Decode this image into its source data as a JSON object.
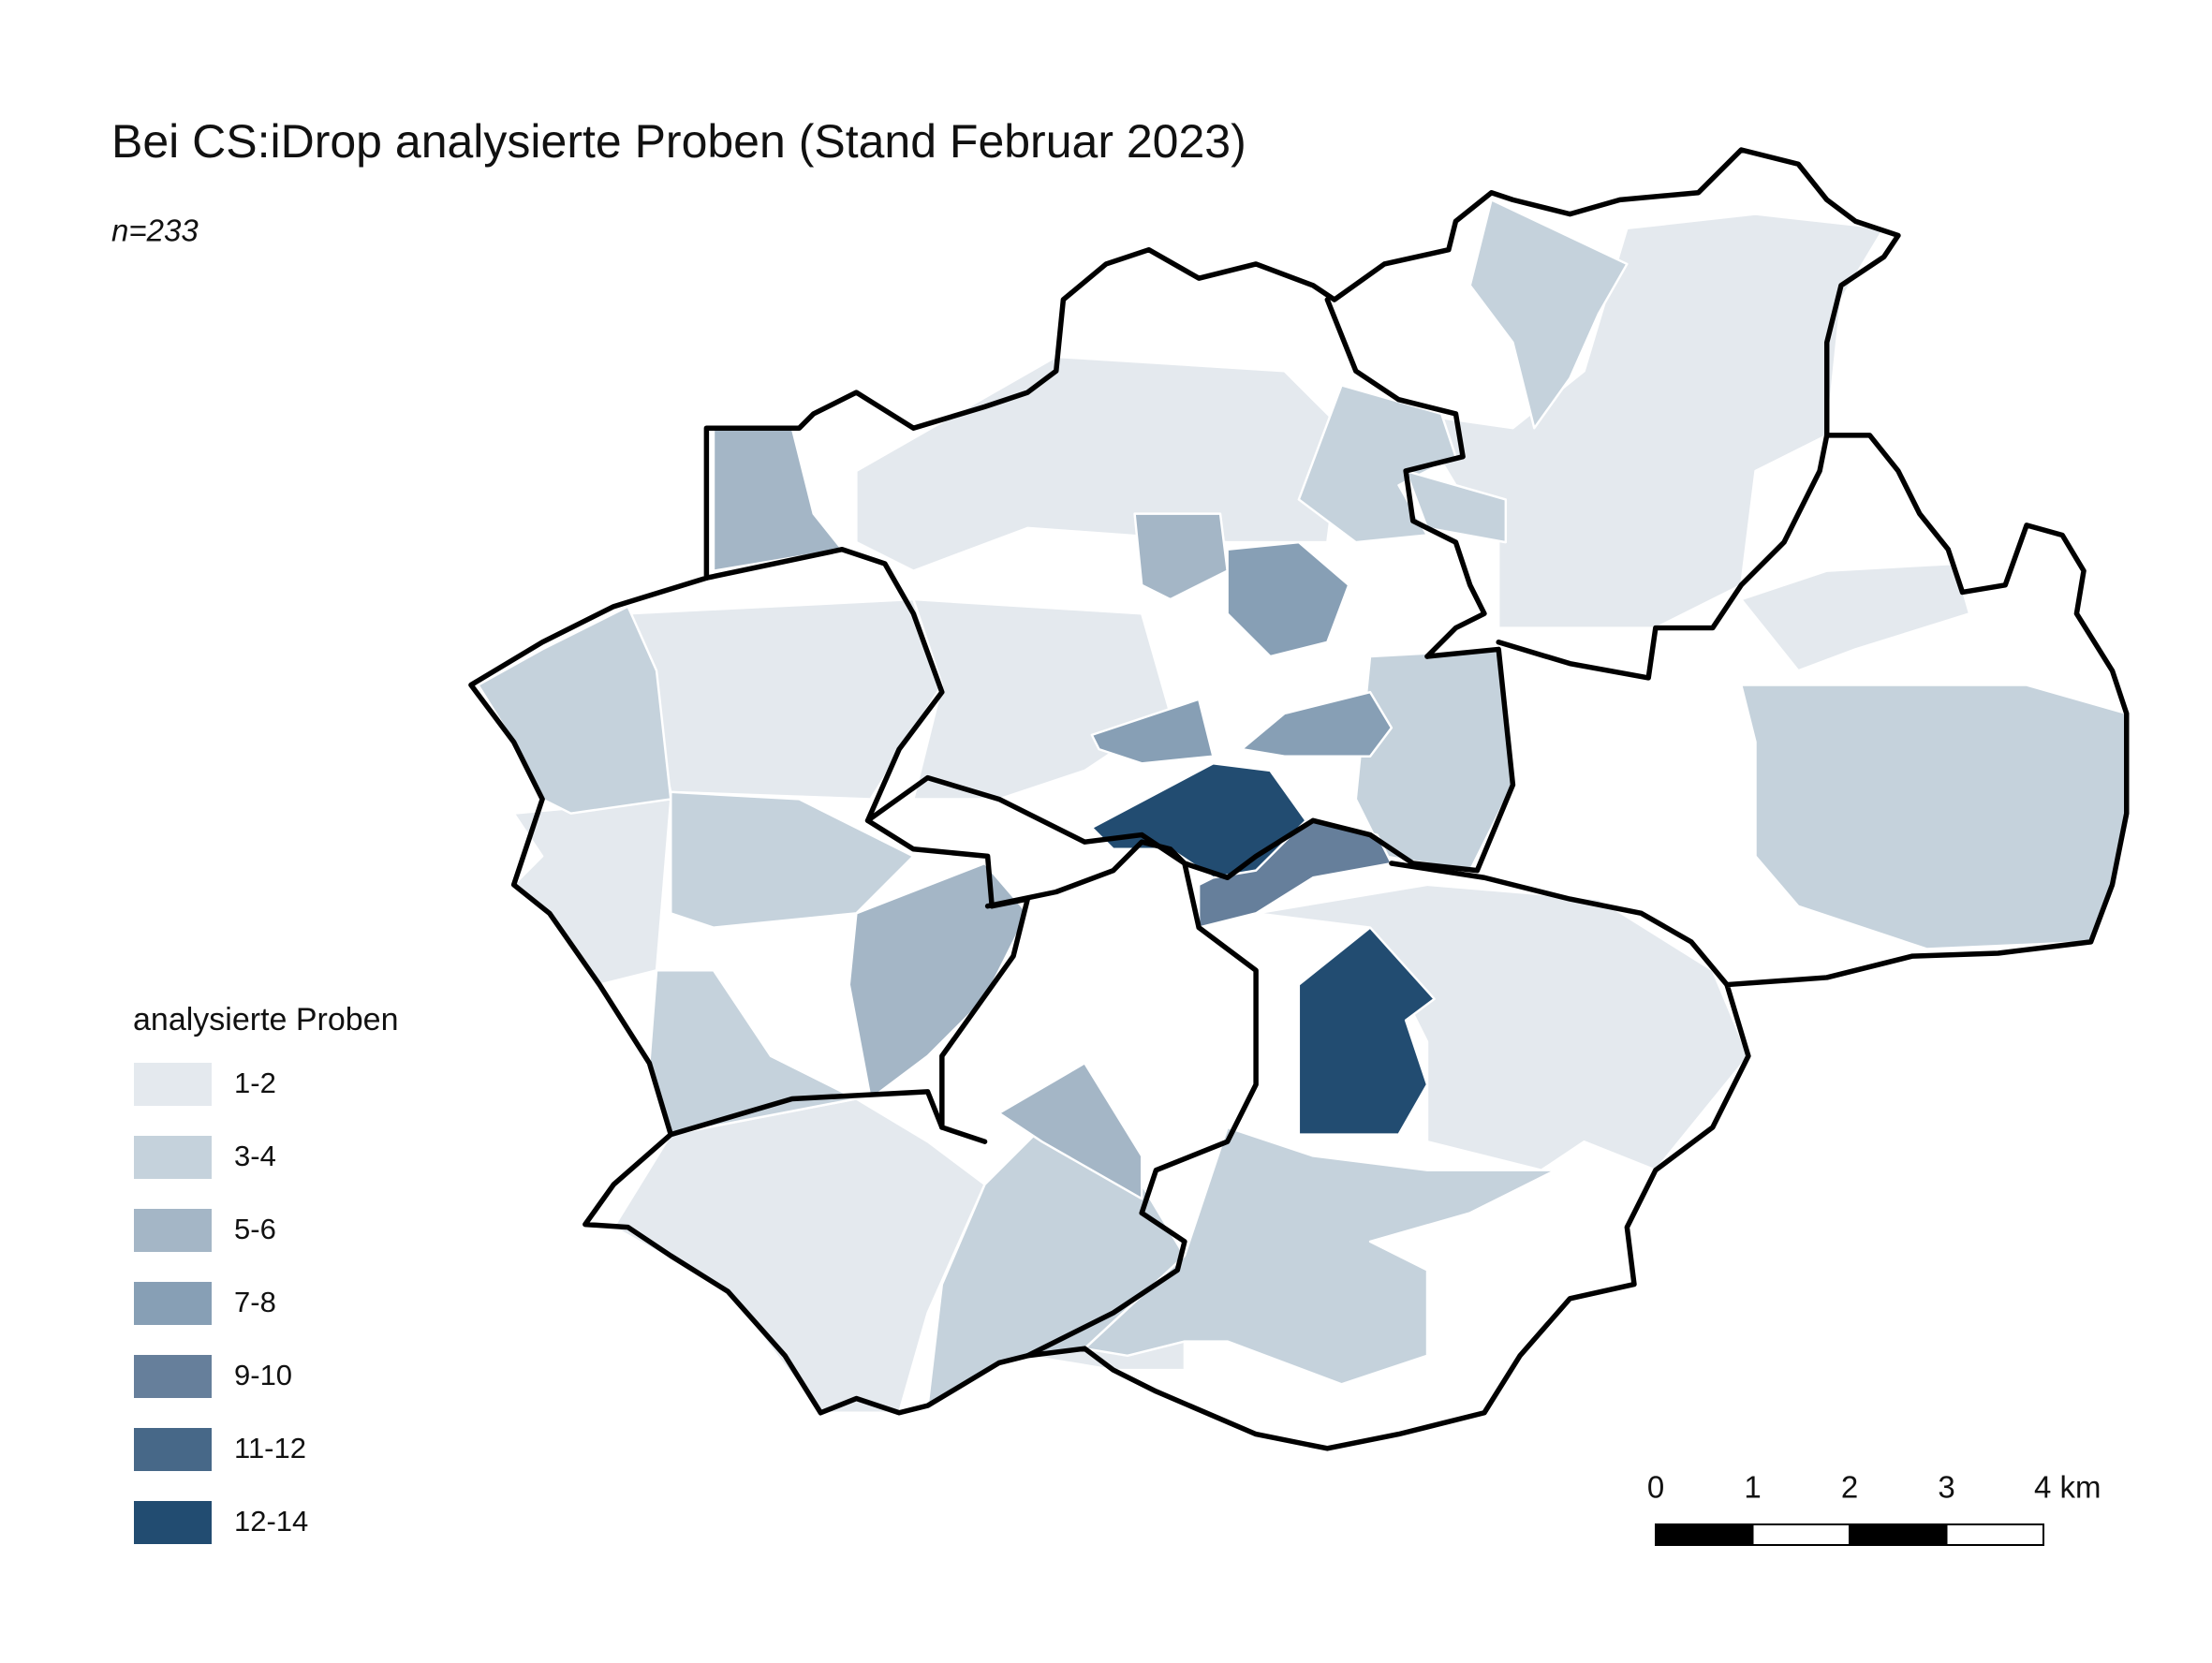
{
  "title": "Bei CS:iDrop analysierte Proben (Stand Februar 2023)",
  "subtitle": "n=233",
  "legend": {
    "title": "analysierte Proben",
    "items": [
      {
        "label": "1-2",
        "color": "#e4e9ee"
      },
      {
        "label": "3-4",
        "color": "#c5d2dc"
      },
      {
        "label": "5-6",
        "color": "#a4b6c6"
      },
      {
        "label": "7-8",
        "color": "#879fb5"
      },
      {
        "label": "9-10",
        "color": "#667f9b"
      },
      {
        "label": "11-12",
        "color": "#476888"
      },
      {
        "label": "12-14",
        "color": "#224c71"
      }
    ]
  },
  "scale_bar": {
    "labels": [
      "0",
      "1",
      "2",
      "3",
      "4 km"
    ]
  }
}
